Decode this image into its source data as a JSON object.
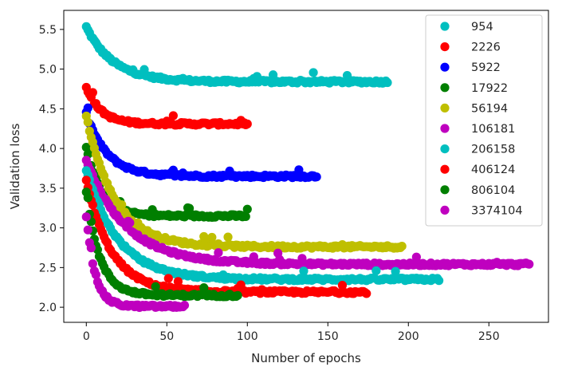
{
  "chart_data": {
    "type": "scatter",
    "title": "",
    "xlabel": "Number of epochs",
    "ylabel": "Validation loss",
    "xlim": [
      -14,
      287
    ],
    "ylim": [
      1.81,
      5.74
    ],
    "xticks": [
      0,
      50,
      100,
      150,
      200,
      250
    ],
    "yticks": [
      2.0,
      2.5,
      3.0,
      3.5,
      4.0,
      4.5,
      5.0,
      5.5
    ],
    "xtick_labels": [
      "0",
      "50",
      "100",
      "150",
      "200",
      "250"
    ],
    "ytick_labels": [
      "2.0",
      "2.5",
      "3.0",
      "3.5",
      "4.0",
      "4.5",
      "5.0",
      "5.5"
    ],
    "grid": false,
    "legend_position": "upper right",
    "series": [
      {
        "name": "954",
        "color": "#00bfbf",
        "epochs": 187,
        "start": 5.53,
        "final": 4.84
      },
      {
        "name": "2226",
        "color": "#ff0000",
        "epochs": 100,
        "start": 4.78,
        "final": 4.31
      },
      {
        "name": "5922",
        "color": "#0000ff",
        "epochs": 143,
        "start": 4.44,
        "final": 3.65
      },
      {
        "name": "17922",
        "color": "#007f00",
        "epochs": 100,
        "start": 4.03,
        "final": 3.15
      },
      {
        "name": "56194",
        "color": "#bfbf00",
        "epochs": 196,
        "start": 4.41,
        "final": 2.76
      },
      {
        "name": "106181",
        "color": "#bf00bf",
        "epochs": 275,
        "start": 3.85,
        "final": 2.54
      },
      {
        "name": "206158",
        "color": "#00bfbf",
        "epochs": 219,
        "start": 3.73,
        "final": 2.35
      },
      {
        "name": "406124",
        "color": "#ff0000",
        "epochs": 174,
        "start": 3.59,
        "final": 2.19
      },
      {
        "name": "806104",
        "color": "#007f00",
        "epochs": 94,
        "start": 3.45,
        "final": 2.15
      },
      {
        "name": "3374104",
        "color": "#bf00bf",
        "epochs": 61,
        "start": 3.15,
        "final": 2.01
      }
    ]
  }
}
